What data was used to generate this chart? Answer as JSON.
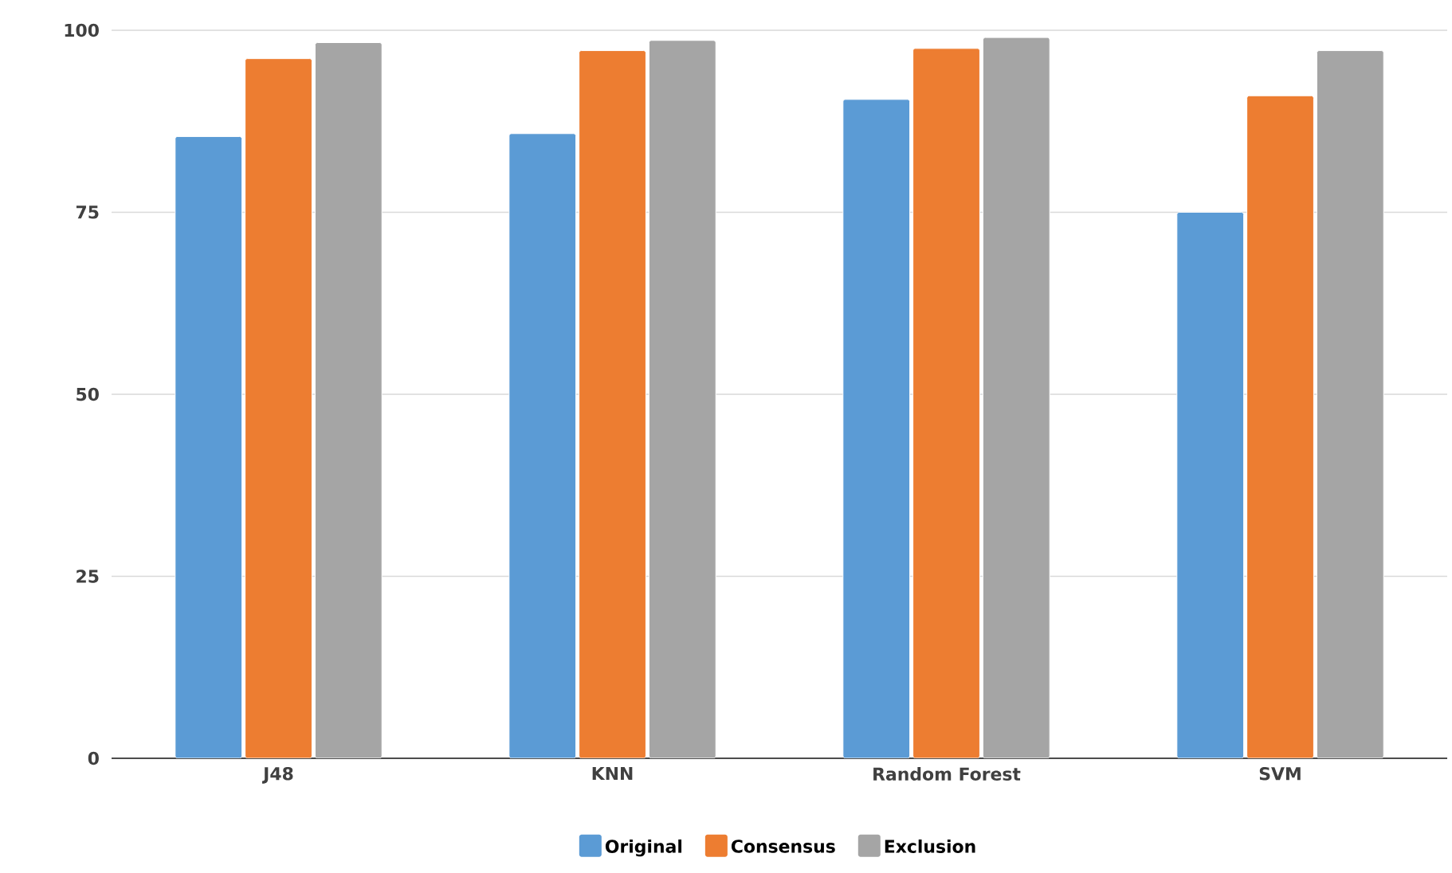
{
  "chart_data": {
    "type": "bar",
    "categories": [
      "J48",
      "KNN",
      "Random Forest",
      "SVM"
    ],
    "series": [
      {
        "name": "Original",
        "color": "#5b9bd5",
        "values": [
          85.4,
          85.8,
          90.5,
          75.0
        ]
      },
      {
        "name": "Consensus",
        "color": "#ed7d31",
        "values": [
          96.1,
          97.2,
          97.5,
          91.0
        ]
      },
      {
        "name": "Exclusion",
        "color": "#a5a5a5",
        "values": [
          98.3,
          98.6,
          99.0,
          97.2
        ]
      }
    ],
    "ylim": [
      0,
      100
    ],
    "yticks": [
      0,
      25,
      50,
      75,
      100
    ],
    "grid": "y",
    "legend": "bottom"
  }
}
